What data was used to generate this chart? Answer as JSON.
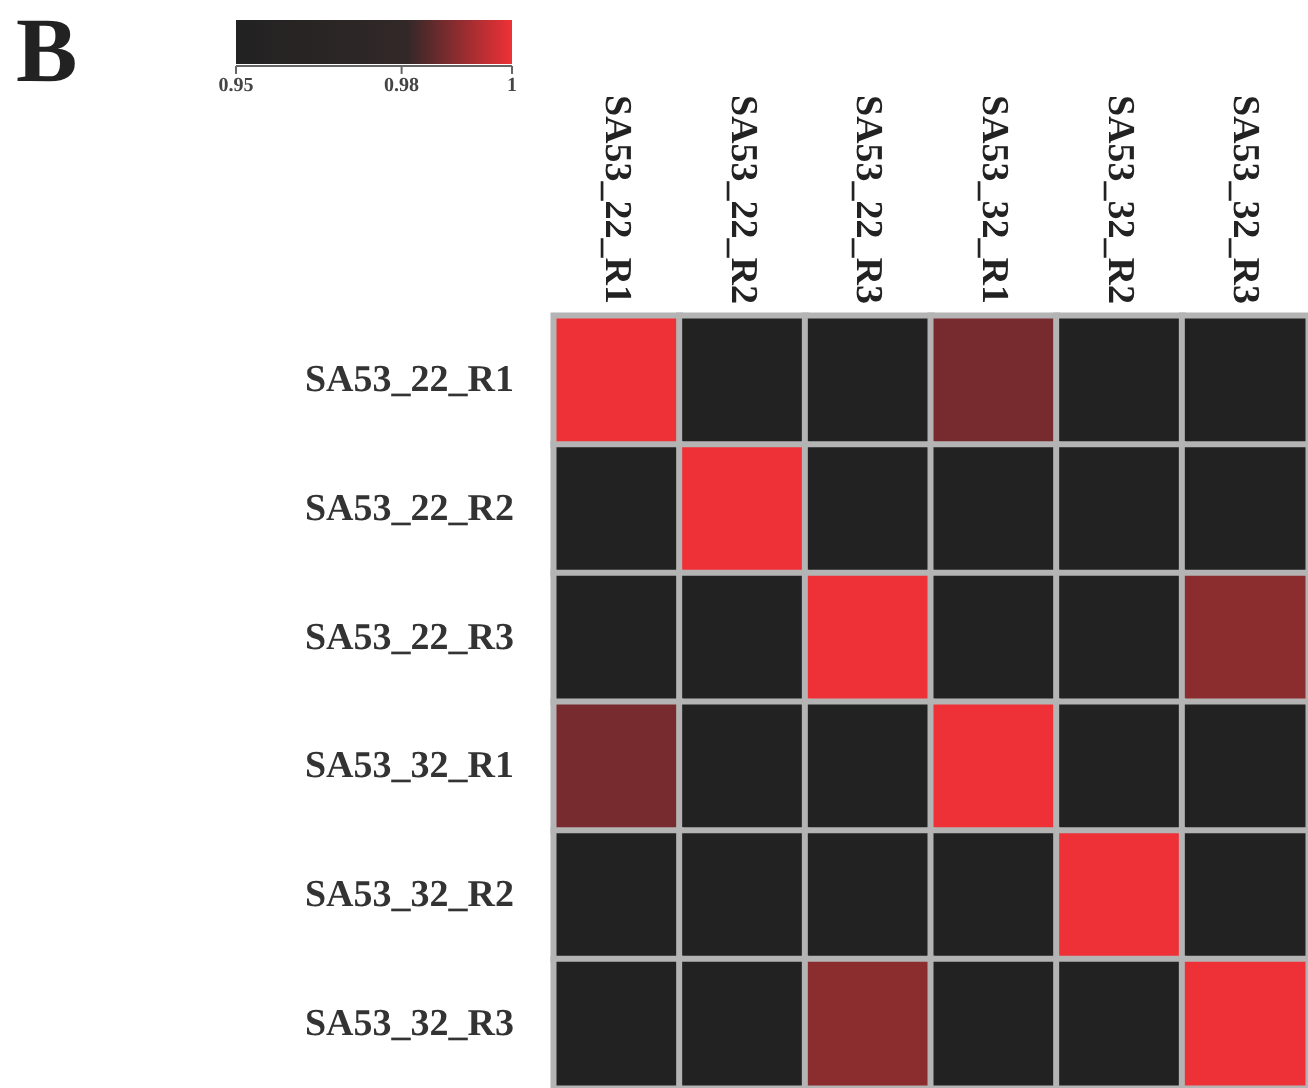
{
  "chart_data": {
    "type": "heatmap",
    "title": "B",
    "categories": [
      "SA53_22_R1",
      "SA53_22_R2",
      "SA53_22_R3",
      "SA53_32_R1",
      "SA53_32_R2",
      "SA53_32_R3"
    ],
    "y_categories": [
      "SA53_22_R1",
      "SA53_22_R2",
      "SA53_22_R3",
      "SA53_32_R1",
      "SA53_32_R2",
      "SA53_32_R3"
    ],
    "cells": [
      [
        1,
        0.95,
        0.95,
        0.988,
        0.95,
        0.95
      ],
      [
        0.95,
        1,
        0.95,
        0.95,
        0.95,
        0.95
      ],
      [
        0.95,
        0.95,
        1,
        0.95,
        0.95,
        0.99
      ],
      [
        0.988,
        0.95,
        0.95,
        1,
        0.95,
        0.95
      ],
      [
        0.95,
        0.95,
        0.95,
        0.95,
        1,
        0.95
      ],
      [
        0.95,
        0.95,
        0.99,
        0.95,
        0.95,
        1
      ]
    ],
    "clim": [
      0.95,
      1
    ],
    "cticks": [
      0.95,
      0.98,
      1
    ]
  }
}
